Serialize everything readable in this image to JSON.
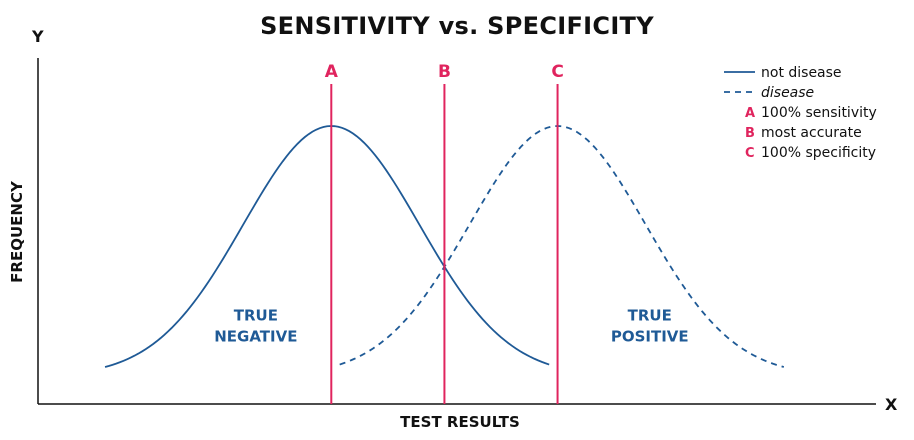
{
  "chart_data": {
    "type": "line",
    "title": "SENSITIVITY vs. SPECIFICITY",
    "x_axis_letter": "X",
    "y_axis_letter": "Y",
    "xlabel": "TEST RESULTS",
    "ylabel": "FREQUENCY",
    "xlim": [
      0,
      100
    ],
    "ylim": [
      0,
      100
    ],
    "series": [
      {
        "name": "not disease",
        "style": "solid",
        "color": "#1f5a96",
        "x_range": [
          8,
          61
        ],
        "mean": 35,
        "sd": 10.5,
        "peak": 100,
        "baseline": 10
      },
      {
        "name": "disease",
        "style": "dashed",
        "color": "#1f5a96",
        "x_range": [
          36,
          89
        ],
        "mean": 62,
        "sd": 10.5,
        "peak": 100,
        "baseline": 10
      }
    ],
    "thresholds": [
      {
        "key": "A",
        "x": 35,
        "color": "#e0245e",
        "description": "100% sensitivity"
      },
      {
        "key": "B",
        "x": 48.5,
        "color": "#e0245e",
        "description": "most accurate"
      },
      {
        "key": "C",
        "x": 62,
        "color": "#e0245e",
        "description": "100% specificity"
      }
    ],
    "annotations": [
      {
        "lines": [
          "TRUE",
          "NEGATIVE"
        ],
        "x": 26,
        "y": 30
      },
      {
        "lines": [
          "TRUE",
          "POSITIVE"
        ],
        "x": 73,
        "y": 30
      }
    ],
    "legend": {
      "position": "top-right",
      "entries": [
        {
          "text": "not disease",
          "style": "solid"
        },
        {
          "text": "disease",
          "style": "dashed"
        },
        {
          "key": "A",
          "text": "100% sensitivity"
        },
        {
          "key": "B",
          "text": "most accurate"
        },
        {
          "key": "C",
          "text": "100% specificity"
        }
      ]
    }
  }
}
